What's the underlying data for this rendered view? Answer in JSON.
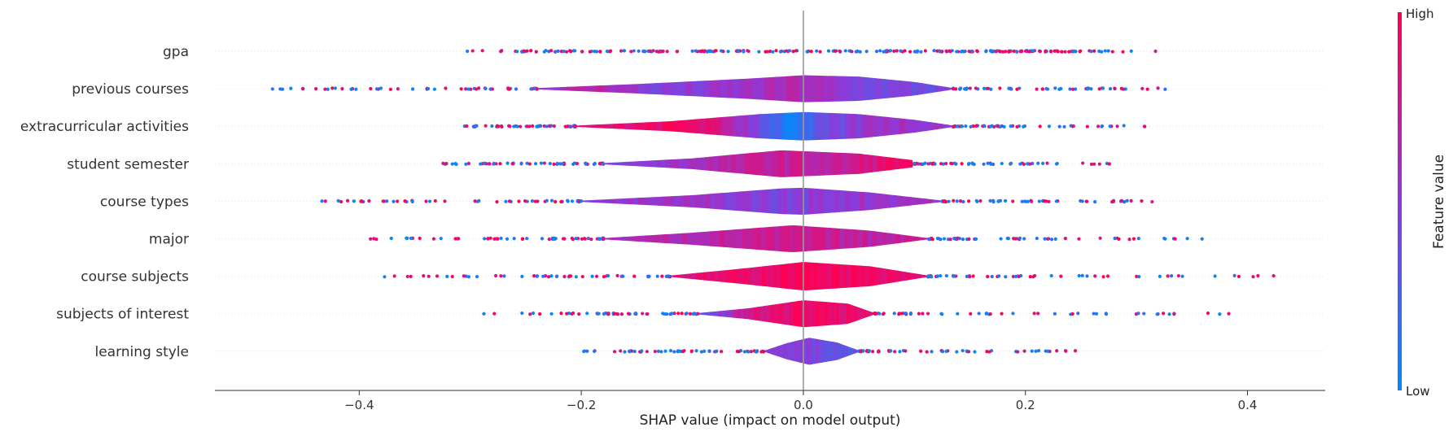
{
  "chart_data": {
    "type": "scatter",
    "subtype": "shap-violin-summary",
    "title": "",
    "xlabel": "SHAP value (impact on model output)",
    "ylabel": "",
    "xlim": [
      -0.53,
      0.47
    ],
    "xticks": [
      -0.4,
      -0.2,
      0.0,
      0.2,
      0.4
    ],
    "xtick_labels": [
      "−0.4",
      "−0.2",
      "0.0",
      "0.2",
      "0.4"
    ],
    "grid": false,
    "colorbar": {
      "label": "Feature value",
      "high_label": "High",
      "low_label": "Low",
      "low_color": "#008bfb",
      "high_color": "#ff0052"
    },
    "features": [
      {
        "name": "gpa",
        "min": -0.36,
        "max": 0.37,
        "violin_half_width": 0.0,
        "width_profile": [],
        "color_profile": []
      },
      {
        "name": "previous courses",
        "min": -0.48,
        "max": 0.33,
        "violin_half_width": 0.36,
        "width_profile": [
          [
            -0.24,
            0.05
          ],
          [
            -0.15,
            0.35
          ],
          [
            -0.05,
            0.75
          ],
          [
            0.0,
            1.0
          ],
          [
            0.05,
            0.9
          ],
          [
            0.1,
            0.5
          ],
          [
            0.135,
            0.05
          ]
        ],
        "color_profile": [
          [
            -0.24,
            0.55
          ],
          [
            -0.18,
            0.7
          ],
          [
            -0.14,
            0.45
          ],
          [
            -0.08,
            0.5
          ],
          [
            0.0,
            0.65
          ],
          [
            0.04,
            0.45
          ],
          [
            0.13,
            0.4
          ]
        ]
      },
      {
        "name": "extracurricular activities",
        "min": -0.31,
        "max": 0.31,
        "violin_half_width": 0.38,
        "width_profile": [
          [
            -0.205,
            0.05
          ],
          [
            -0.12,
            0.35
          ],
          [
            -0.04,
            0.85
          ],
          [
            0.0,
            1.0
          ],
          [
            0.05,
            0.85
          ],
          [
            0.1,
            0.45
          ],
          [
            0.135,
            0.05
          ]
        ],
        "color_profile": [
          [
            -0.2,
            0.8
          ],
          [
            -0.1,
            0.95
          ],
          [
            -0.05,
            0.55
          ],
          [
            -0.01,
            0.05
          ],
          [
            0.02,
            0.35
          ],
          [
            0.07,
            0.6
          ],
          [
            0.13,
            0.55
          ]
        ]
      },
      {
        "name": "student semester",
        "min": -0.33,
        "max": 0.29,
        "violin_half_width": 0.36,
        "width_profile": [
          [
            -0.18,
            0.05
          ],
          [
            -0.1,
            0.4
          ],
          [
            -0.02,
            1.0
          ],
          [
            0.05,
            0.75
          ],
          [
            0.1,
            0.25
          ],
          [
            0.098,
            0.05
          ]
        ],
        "color_profile": [
          [
            -0.18,
            0.4
          ],
          [
            -0.1,
            0.6
          ],
          [
            -0.03,
            0.75
          ],
          [
            0.03,
            0.7
          ],
          [
            0.09,
            0.95
          ]
        ]
      },
      {
        "name": "course types",
        "min": -0.44,
        "max": 0.32,
        "violin_half_width": 0.36,
        "width_profile": [
          [
            -0.2,
            0.05
          ],
          [
            -0.1,
            0.45
          ],
          [
            -0.02,
            0.95
          ],
          [
            0.0,
            1.0
          ],
          [
            0.06,
            0.65
          ],
          [
            0.125,
            0.05
          ]
        ],
        "color_profile": [
          [
            -0.2,
            0.5
          ],
          [
            -0.1,
            0.55
          ],
          [
            -0.02,
            0.45
          ],
          [
            0.05,
            0.55
          ],
          [
            0.12,
            0.6
          ]
        ]
      },
      {
        "name": "major",
        "min": -0.39,
        "max": 0.36,
        "violin_half_width": 0.36,
        "width_profile": [
          [
            -0.18,
            0.05
          ],
          [
            -0.1,
            0.45
          ],
          [
            -0.01,
            1.0
          ],
          [
            0.06,
            0.6
          ],
          [
            0.112,
            0.05
          ]
        ],
        "color_profile": [
          [
            -0.18,
            0.6
          ],
          [
            -0.08,
            0.7
          ],
          [
            0.0,
            0.75
          ],
          [
            0.06,
            0.7
          ],
          [
            0.11,
            0.8
          ]
        ]
      },
      {
        "name": "course subjects",
        "min": -0.39,
        "max": 0.43,
        "violin_half_width": 0.38,
        "width_profile": [
          [
            -0.12,
            0.05
          ],
          [
            -0.06,
            0.5
          ],
          [
            0.0,
            1.0
          ],
          [
            0.06,
            0.7
          ],
          [
            0.112,
            0.05
          ]
        ],
        "color_profile": [
          [
            -0.12,
            0.85
          ],
          [
            -0.05,
            0.9
          ],
          [
            0.0,
            1.0
          ],
          [
            0.06,
            0.9
          ],
          [
            0.11,
            0.85
          ]
        ]
      },
      {
        "name": "subjects of interest",
        "min": -0.32,
        "max": 0.39,
        "violin_half_width": 0.36,
        "width_profile": [
          [
            -0.095,
            0.05
          ],
          [
            -0.05,
            0.4
          ],
          [
            0.0,
            1.0
          ],
          [
            0.04,
            0.75
          ],
          [
            0.064,
            0.05
          ]
        ],
        "color_profile": [
          [
            -0.09,
            0.3
          ],
          [
            -0.05,
            0.8
          ],
          [
            0.0,
            0.95
          ],
          [
            0.04,
            0.9
          ],
          [
            0.06,
            0.85
          ]
        ]
      },
      {
        "name": "learning style",
        "min": -0.2,
        "max": 0.25,
        "violin_half_width": 0.36,
        "width_profile": [
          [
            -0.035,
            0.05
          ],
          [
            -0.015,
            0.6
          ],
          [
            0.005,
            1.0
          ],
          [
            0.03,
            0.65
          ],
          [
            0.05,
            0.05
          ]
        ],
        "color_profile": [
          [
            -0.03,
            0.5
          ],
          [
            0.0,
            0.45
          ],
          [
            0.03,
            0.35
          ],
          [
            0.05,
            0.3
          ]
        ]
      }
    ]
  }
}
